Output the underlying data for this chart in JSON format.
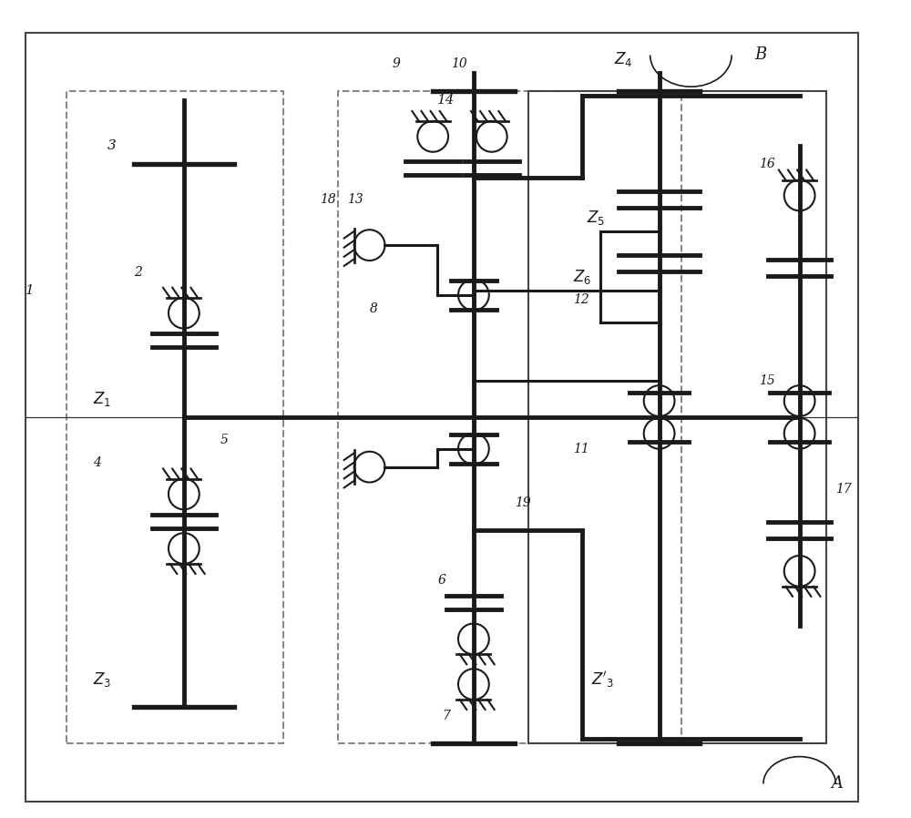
{
  "bg_color": "#ffffff",
  "line_color": "#1a1a1a",
  "dashed_color": "#888888",
  "figsize": [
    10.0,
    8.98
  ],
  "dpi": 100,
  "xlim": [
    0,
    100
  ],
  "ylim": [
    0,
    89.8
  ]
}
